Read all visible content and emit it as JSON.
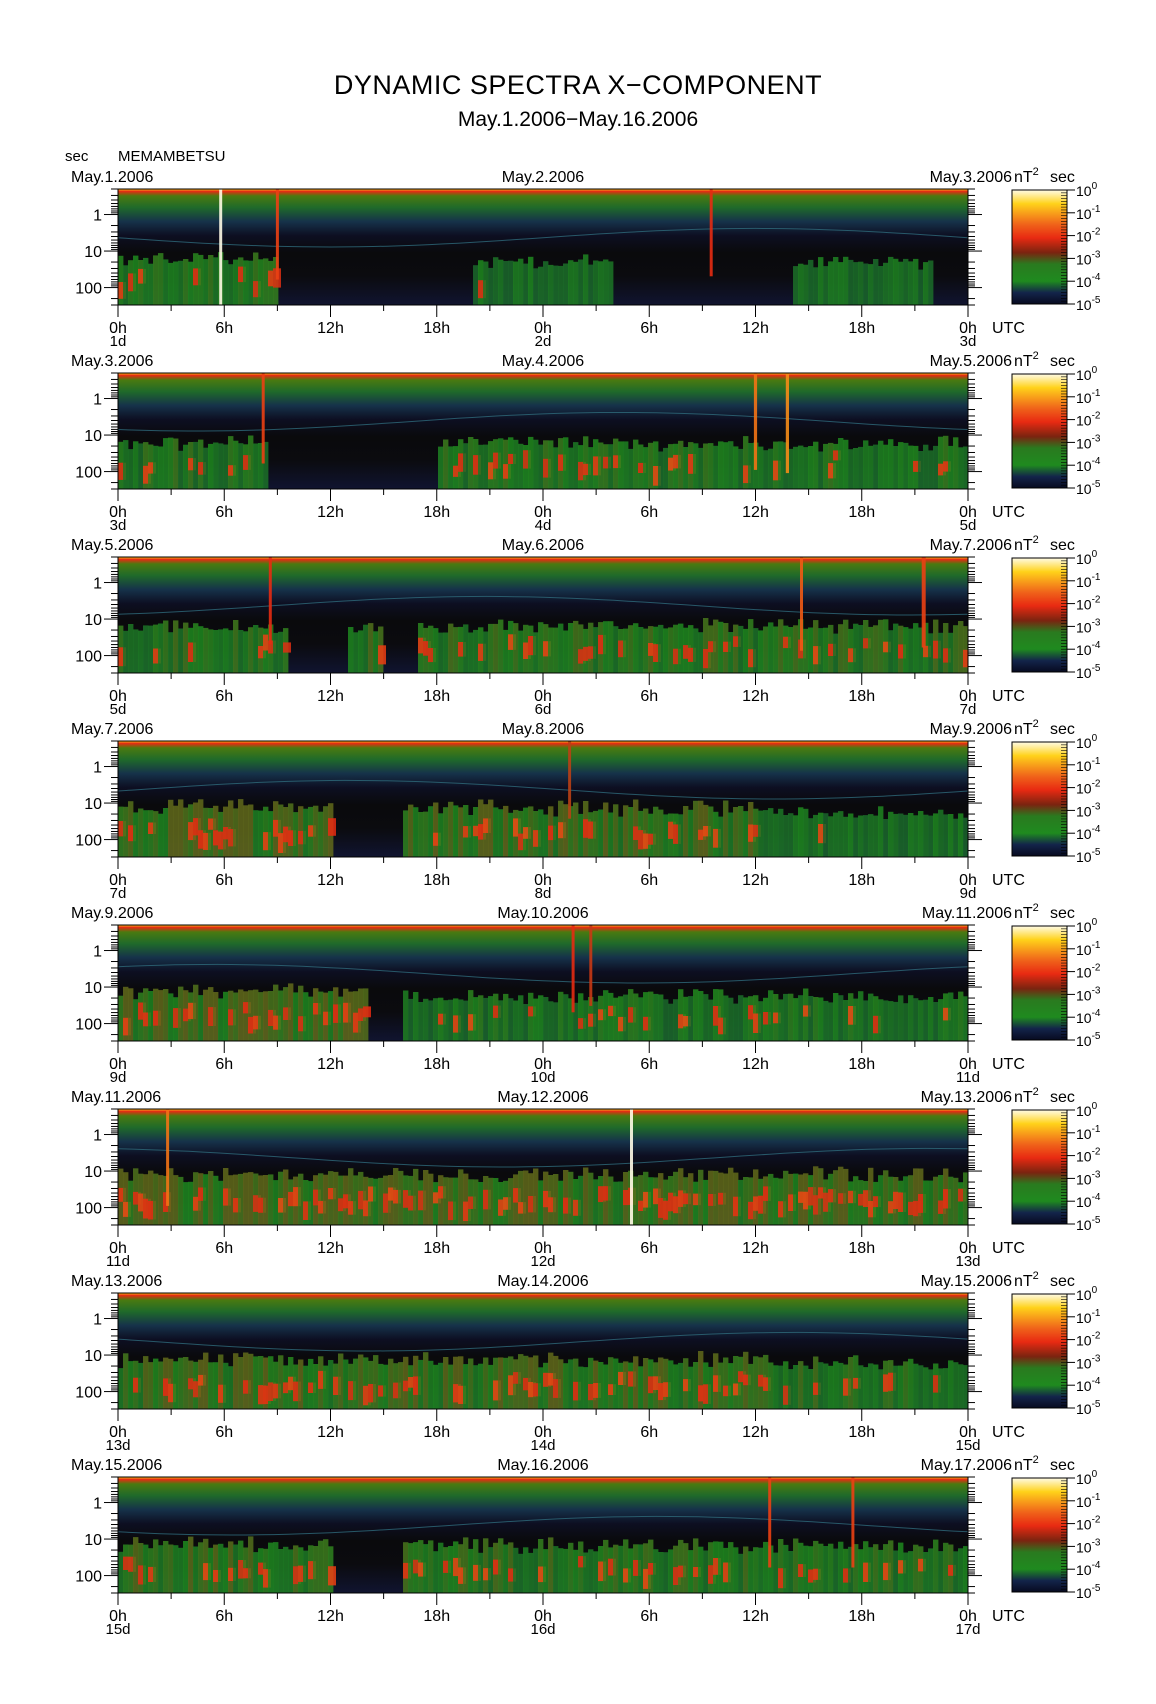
{
  "title": "DYNAMIC SPECTRA X−COMPONENT",
  "subtitle": "May.1.2006−May.16.2006",
  "y_unit": "sec",
  "station": "MEMAMBETSU",
  "colorbar_unit_base": "nT",
  "colorbar_unit_exp": "2",
  "colorbar_unit_tail": "sec",
  "colors": {
    "background": "#0b0b0b",
    "low": "#101848",
    "mid": "#1f8a1f",
    "high": "#e82a12",
    "peak": "#ffd21a",
    "top": "#fffbe6"
  },
  "chart_data": {
    "type": "heatmap",
    "y_scale": "log",
    "y_ticks": [
      "1",
      "10",
      "100"
    ],
    "y_tick_values": [
      1,
      10,
      100
    ],
    "y_range_sec": [
      0.2,
      300
    ],
    "x_tick_labels": [
      "0h",
      "6h",
      "12h",
      "18h",
      "0h",
      "6h",
      "12h",
      "18h",
      "0h"
    ],
    "x_axis_unit": "UTC",
    "colorbar": {
      "labels": [
        {
          "base": "10",
          "exp": "0"
        },
        {
          "base": "10",
          "exp": "-1"
        },
        {
          "base": "10",
          "exp": "-2"
        },
        {
          "base": "10",
          "exp": "-3"
        },
        {
          "base": "10",
          "exp": "-4"
        },
        {
          "base": "10",
          "exp": "-5"
        }
      ],
      "range": [
        1e-05,
        1
      ],
      "scale": "log"
    },
    "panels": [
      {
        "date_left": "May.1.2006",
        "date_mid": "May.2.2006",
        "date_right": "May.3.2006",
        "day_left": "1d",
        "day_mid": "2d",
        "day_right": "3d",
        "bursts": [
          [
            5.8,
            0.06,
            1.0
          ],
          [
            9.0,
            0.03,
            0.6
          ],
          [
            33.5,
            0.04,
            0.55
          ]
        ],
        "activity_bands": [
          [
            0,
            9,
            0.45
          ],
          [
            20,
            28,
            0.35
          ],
          [
            38,
            46,
            0.35
          ]
        ]
      },
      {
        "date_left": "May.3.2006",
        "date_mid": "May.4.2006",
        "date_right": "May.5.2006",
        "day_left": "3d",
        "day_mid": "4d",
        "day_right": "5d",
        "bursts": [
          [
            8.2,
            0.05,
            0.6
          ],
          [
            36.0,
            0.08,
            0.7
          ],
          [
            37.8,
            0.08,
            0.75
          ]
        ],
        "activity_bands": [
          [
            0,
            8.5,
            0.45
          ],
          [
            18,
            48,
            0.45
          ]
        ]
      },
      {
        "date_left": "May.5.2006",
        "date_mid": "May.6.2006",
        "date_right": "May.7.2006",
        "day_left": "5d",
        "day_mid": "6d",
        "day_right": "7d",
        "bursts": [
          [
            8.6,
            0.04,
            0.55
          ],
          [
            38.6,
            0.05,
            0.65
          ],
          [
            45.5,
            0.1,
            0.6
          ]
        ],
        "activity_bands": [
          [
            0,
            9.5,
            0.5
          ],
          [
            13,
            15,
            0.55
          ],
          [
            17,
            48,
            0.5
          ]
        ]
      },
      {
        "date_left": "May.7.2006",
        "date_mid": "May.8.2006",
        "date_right": "May.9.2006",
        "day_left": "7d",
        "day_mid": "8d",
        "day_right": "9d",
        "bursts": [
          [
            25.5,
            0.03,
            0.4
          ]
        ],
        "activity_bands": [
          [
            0,
            12,
            0.65
          ],
          [
            16,
            36,
            0.6
          ],
          [
            36,
            48,
            0.35
          ]
        ]
      },
      {
        "date_left": "May.9.2006",
        "date_mid": "May.10.2006",
        "date_right": "May.11.2006",
        "day_left": "9d",
        "day_mid": "10d",
        "day_right": "11d",
        "bursts": [
          [
            25.7,
            0.05,
            0.55
          ],
          [
            26.7,
            0.05,
            0.45
          ]
        ],
        "activity_bands": [
          [
            0,
            14,
            0.65
          ],
          [
            16,
            48,
            0.4
          ]
        ]
      },
      {
        "date_left": "May.11.2006",
        "date_mid": "May.12.2006",
        "date_right": "May.13.2006",
        "day_left": "11d",
        "day_mid": "12d",
        "day_right": "13d",
        "bursts": [
          [
            2.8,
            0.04,
            0.7
          ],
          [
            29.0,
            0.05,
            1.0
          ]
        ],
        "activity_bands": [
          [
            0,
            48,
            0.65
          ]
        ]
      },
      {
        "date_left": "May.13.2006",
        "date_mid": "May.14.2006",
        "date_right": "May.15.2006",
        "day_left": "13d",
        "day_mid": "14d",
        "day_right": "15d",
        "bursts": [],
        "activity_bands": [
          [
            0,
            12,
            0.6
          ],
          [
            12,
            36,
            0.6
          ],
          [
            36,
            48,
            0.5
          ]
        ]
      },
      {
        "date_left": "May.15.2006",
        "date_mid": "May.16.2006",
        "date_right": "May.17.2006",
        "day_left": "15d",
        "day_mid": "16d",
        "day_right": "17d",
        "bursts": [
          [
            36.8,
            0.06,
            0.6
          ],
          [
            41.5,
            0.05,
            0.6
          ]
        ],
        "activity_bands": [
          [
            0,
            12,
            0.55
          ],
          [
            16,
            48,
            0.5
          ]
        ]
      }
    ]
  }
}
